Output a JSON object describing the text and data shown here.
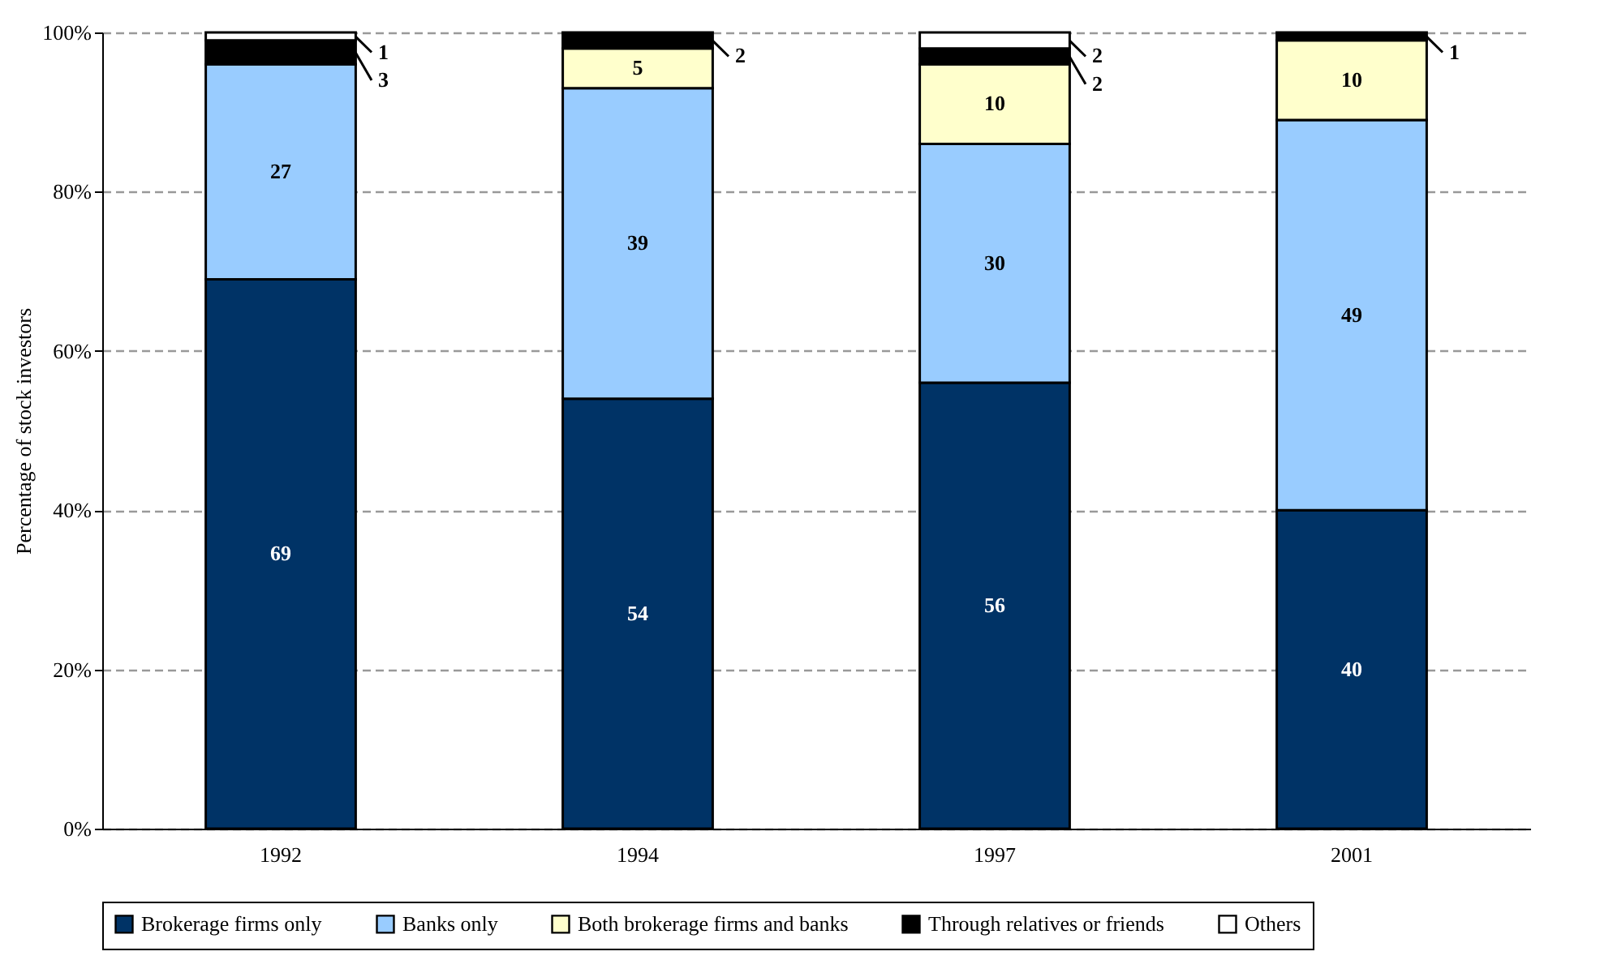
{
  "chart_data": {
    "type": "bar",
    "stacked": true,
    "ylabel": "Percentage of stock investors",
    "categories": [
      "1992",
      "1994",
      "1997",
      "2001"
    ],
    "ylim": [
      0,
      100
    ],
    "yticks": [
      {
        "value": 0,
        "label": "0%"
      },
      {
        "value": 20,
        "label": "20%"
      },
      {
        "value": 40,
        "label": "40%"
      },
      {
        "value": 60,
        "label": "60%"
      },
      {
        "value": 80,
        "label": "80%"
      },
      {
        "value": 100,
        "label": "100%"
      }
    ],
    "grid": "y",
    "legend": "bottom",
    "series": [
      {
        "name": "Brokerage firms only",
        "color": "#003366",
        "values": [
          69,
          54,
          56,
          40
        ],
        "value_labels": [
          "69",
          "54",
          "56",
          "40"
        ]
      },
      {
        "name": "Banks only",
        "color": "#99ccff",
        "values": [
          27,
          39,
          30,
          49
        ],
        "value_labels": [
          "27",
          "39",
          "30",
          "49"
        ]
      },
      {
        "name": "Both brokerage firms and banks",
        "color": "#ffffcc",
        "values": [
          null,
          5,
          10,
          10
        ],
        "value_labels": [
          null,
          "5",
          "10",
          "10"
        ]
      },
      {
        "name": "Through relatives or friends",
        "color": "#000000",
        "values": [
          3,
          2,
          2,
          1
        ],
        "value_labels": [
          "3",
          "2",
          "2",
          "1"
        ]
      },
      {
        "name": "Others",
        "color": "#ffffff",
        "values": [
          1,
          null,
          2,
          null
        ],
        "value_labels": [
          "1",
          null,
          "2",
          null
        ]
      }
    ]
  }
}
